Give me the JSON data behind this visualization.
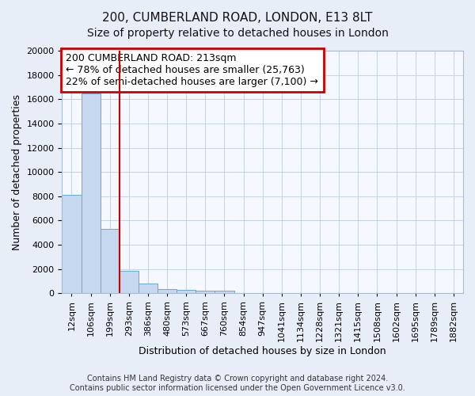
{
  "title": "200, CUMBERLAND ROAD, LONDON, E13 8LT",
  "subtitle": "Size of property relative to detached houses in London",
  "xlabel": "Distribution of detached houses by size in London",
  "ylabel": "Number of detached properties",
  "categories": [
    "12sqm",
    "106sqm",
    "199sqm",
    "293sqm",
    "386sqm",
    "480sqm",
    "573sqm",
    "667sqm",
    "760sqm",
    "854sqm",
    "947sqm",
    "1041sqm",
    "1134sqm",
    "1228sqm",
    "1321sqm",
    "1415sqm",
    "1508sqm",
    "1602sqm",
    "1695sqm",
    "1789sqm",
    "1882sqm"
  ],
  "bar_values": [
    8100,
    16500,
    5300,
    1850,
    800,
    350,
    280,
    200,
    200,
    0,
    0,
    0,
    0,
    0,
    0,
    0,
    0,
    0,
    0,
    0,
    0
  ],
  "bar_color": "#c5d8f0",
  "bar_edgecolor": "#6aaad4",
  "vline_x": 2.5,
  "vline_color": "#cc0000",
  "ylim": [
    0,
    20000
  ],
  "yticks": [
    0,
    2000,
    4000,
    6000,
    8000,
    10000,
    12000,
    14000,
    16000,
    18000,
    20000
  ],
  "annotation_line1": "200 CUMBERLAND ROAD: 213sqm",
  "annotation_line2": "← 78% of detached houses are smaller (25,763)",
  "annotation_line3": "22% of semi-detached houses are larger (7,100) →",
  "annotation_box_edgecolor": "#cc0000",
  "footer_line1": "Contains HM Land Registry data © Crown copyright and database right 2024.",
  "footer_line2": "Contains public sector information licensed under the Open Government Licence v3.0.",
  "fig_bg_color": "#e8eef8",
  "plot_bg_color": "#f5f8ff",
  "grid_color": "#c8d4e8",
  "title_fontsize": 11,
  "subtitle_fontsize": 10,
  "ylabel_fontsize": 9,
  "xlabel_fontsize": 9,
  "tick_fontsize": 8,
  "annotation_fontsize": 9,
  "footer_fontsize": 7
}
